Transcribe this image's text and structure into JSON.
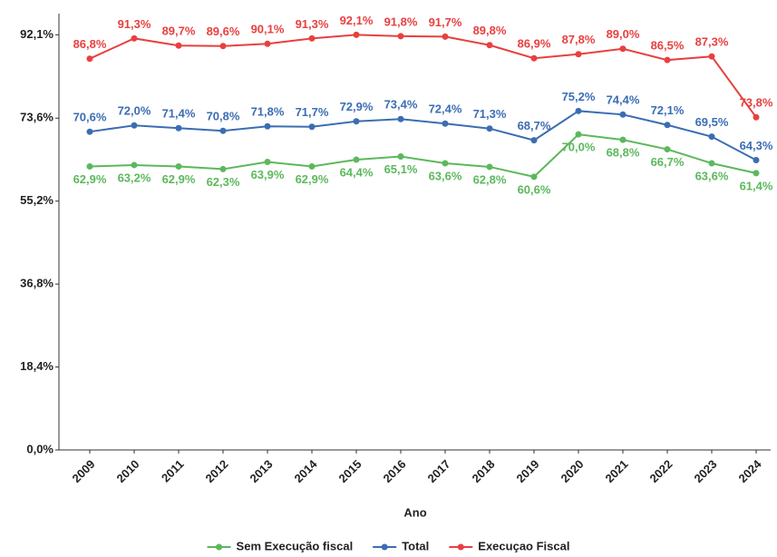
{
  "chart_data": {
    "type": "line",
    "x_label": "Ano",
    "categories": [
      "2009",
      "2010",
      "2011",
      "2012",
      "2013",
      "2014",
      "2015",
      "2016",
      "2017",
      "2018",
      "2019",
      "2020",
      "2021",
      "2022",
      "2023",
      "2024"
    ],
    "ylim": [
      0,
      96.8
    ],
    "yticks": [
      {
        "value": 0,
        "label": "0,0%"
      },
      {
        "value": 18.4,
        "label": "18,4%"
      },
      {
        "value": 36.8,
        "label": "36,8%"
      },
      {
        "value": 55.2,
        "label": "55,2%"
      },
      {
        "value": 73.6,
        "label": "73,6%"
      },
      {
        "value": 92.1,
        "label": "92,1%"
      }
    ],
    "grid": false,
    "legend": "bottom",
    "series": [
      {
        "name": "Sem Execução fiscal",
        "color": "#5cb85c",
        "values": [
          62.9,
          63.2,
          62.9,
          62.3,
          63.9,
          62.9,
          64.4,
          65.1,
          63.6,
          62.8,
          60.6,
          70.0,
          68.8,
          66.7,
          63.6,
          61.4
        ],
        "value_labels": [
          "62,9%",
          "63,2%",
          "62,9%",
          "62,3%",
          "63,9%",
          "62,9%",
          "64,4%",
          "65,1%",
          "63,6%",
          "62,8%",
          "60,6%",
          "70,0%",
          "68,8%",
          "66,7%",
          "63,6%",
          "61,4%"
        ]
      },
      {
        "name": "Total",
        "color": "#3b6db3",
        "values": [
          70.6,
          72.0,
          71.4,
          70.8,
          71.8,
          71.7,
          72.9,
          73.4,
          72.4,
          71.3,
          68.7,
          75.2,
          74.4,
          72.1,
          69.5,
          64.3
        ],
        "value_labels": [
          "70,6%",
          "72,0%",
          "71,4%",
          "70,8%",
          "71,8%",
          "71,7%",
          "72,9%",
          "73,4%",
          "72,4%",
          "71,3%",
          "68,7%",
          "75,2%",
          "74,4%",
          "72,1%",
          "69,5%",
          "64,3%"
        ]
      },
      {
        "name": "Execuçao Fiscal",
        "color": "#e8403f",
        "values": [
          86.8,
          91.3,
          89.7,
          89.6,
          90.1,
          91.3,
          92.1,
          91.8,
          91.7,
          89.8,
          86.9,
          87.8,
          89.0,
          86.5,
          87.3,
          73.8
        ],
        "value_labels": [
          "86,8%",
          "91,3%",
          "89,7%",
          "89,6%",
          "90,1%",
          "91,3%",
          "92,1%",
          "91,8%",
          "91,7%",
          "89,8%",
          "86,9%",
          "87,8%",
          "89,0%",
          "86,5%",
          "87,3%",
          "73,8%"
        ]
      }
    ]
  }
}
